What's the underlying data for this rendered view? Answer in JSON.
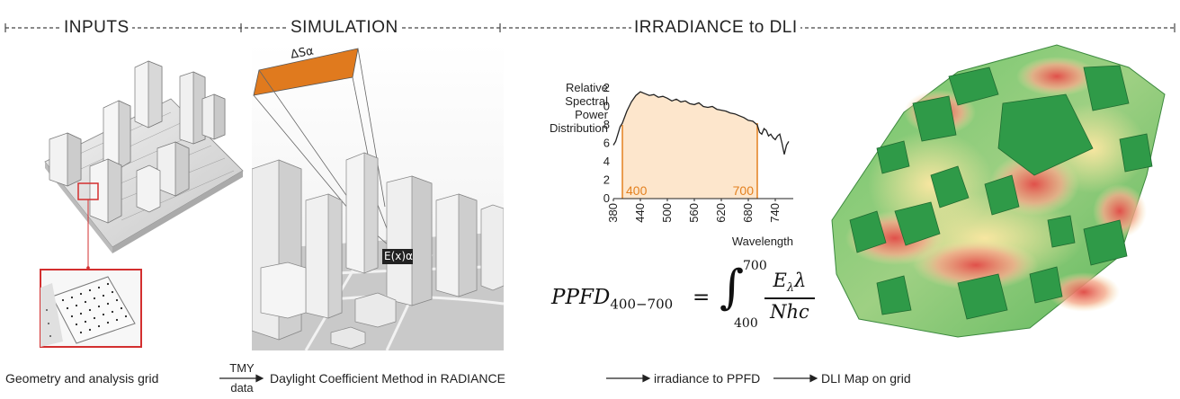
{
  "headers": {
    "inputs": "INPUTS",
    "simulation": "SIMULATION",
    "irradiance_to_dli": "IRRADIANCE to DLI"
  },
  "simulation": {
    "sky_patch_label": "ΔSα",
    "point_label": "E(x)α"
  },
  "chart_data": {
    "type": "line",
    "title": "",
    "ylabel": "Relative Spectral Power Distribution",
    "ylabel_lines": [
      "Relative",
      "Spectral",
      "Power",
      "Distribution"
    ],
    "xlabel": "Wavelength",
    "xlim": [
      380,
      780
    ],
    "ylim": [
      0,
      1.2
    ],
    "x_ticks": [
      380,
      440,
      500,
      560,
      620,
      680,
      740
    ],
    "y_ticks": [
      "0.0",
      "0.2",
      "0.4",
      "0.6",
      "0.8",
      "1.0",
      "1.2"
    ],
    "band": {
      "from": 400,
      "to": 700,
      "start_label": "400",
      "end_label": "700",
      "color": "#fde6cc",
      "edge_color": "#e3801f"
    },
    "series": [
      {
        "x": [
          380,
          385,
          390,
          395,
          400,
          410,
          420,
          430,
          440,
          450,
          460,
          470,
          480,
          490,
          500,
          510,
          520,
          530,
          540,
          550,
          560,
          570,
          580,
          590,
          600,
          610,
          620,
          630,
          640,
          650,
          660,
          670,
          680,
          690,
          700,
          705,
          710,
          715,
          720,
          725,
          730,
          735,
          740,
          745,
          750,
          755,
          760,
          765,
          770
        ],
        "values": [
          0.58,
          0.62,
          0.7,
          0.78,
          0.82,
          0.95,
          1.05,
          1.12,
          1.16,
          1.14,
          1.12,
          1.13,
          1.1,
          1.11,
          1.09,
          1.06,
          1.08,
          1.05,
          1.06,
          1.03,
          1.02,
          1.04,
          1.0,
          0.99,
          1.0,
          0.97,
          0.96,
          0.95,
          0.93,
          0.92,
          0.9,
          0.88,
          0.85,
          0.84,
          0.8,
          0.72,
          0.7,
          0.76,
          0.74,
          0.68,
          0.7,
          0.66,
          0.64,
          0.68,
          0.7,
          0.6,
          0.48,
          0.58,
          0.62
        ]
      }
    ]
  },
  "equation": {
    "lhs": "PPFD",
    "lhs_sub": "400−700",
    "equals": "=",
    "integral": "∫",
    "upper": "700",
    "lower": "400",
    "numerator_main": "E",
    "numerator_sub": "λ",
    "numerator_tail": "λ",
    "denominator": "Nhc"
  },
  "workflow": {
    "step1": "Geometry and analysis grid",
    "arrow1_top": "TMY",
    "arrow1_bottom": "data",
    "step2": "Daylight Coefficient Method in RADIANCE",
    "step3": "irradiance to PPFD",
    "step4": "DLI Map on grid"
  }
}
